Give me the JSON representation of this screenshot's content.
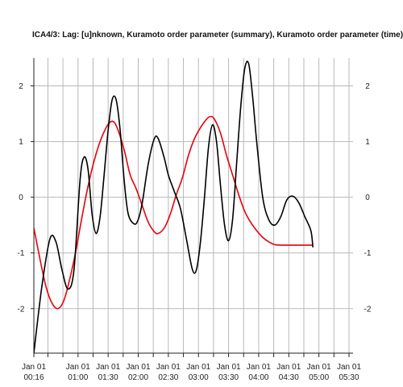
{
  "chart_data": {
    "type": "line",
    "title": "ICA4/3:  Lag: [u]nknown, Kuramoto order parameter (summary), Kuramoto order parameter (time)",
    "xlabel": "",
    "ylabel": "",
    "x_range": [
      "Jan 01 00:16",
      "Jan 01 05:34"
    ],
    "ylim": [
      -2.8,
      2.5
    ],
    "grid": true,
    "y_ticks": [
      -2,
      -1,
      0,
      1,
      2
    ],
    "y_tick_labels": [
      "-2",
      "-1",
      "0",
      "1",
      "2"
    ],
    "x_tick_labels": [
      {
        "line1": "Jan 01",
        "line2": "00:16",
        "minutes": 16
      },
      {
        "line1": "Jan 01",
        "line2": "01:00",
        "minutes": 60
      },
      {
        "line1": "Jan 01",
        "line2": "01:30",
        "minutes": 90
      },
      {
        "line1": "Jan 01",
        "line2": "02:00",
        "minutes": 120
      },
      {
        "line1": "Jan 01",
        "line2": "02:30",
        "minutes": 150
      },
      {
        "line1": "Jan 01",
        "line2": "03:00",
        "minutes": 180
      },
      {
        "line1": "Jan 01",
        "line2": "03:30",
        "minutes": 210
      },
      {
        "line1": "Jan 01",
        "line2": "04:00",
        "minutes": 240
      },
      {
        "line1": "Jan 01",
        "line2": "04:30",
        "minutes": 270
      },
      {
        "line1": "Jan 01",
        "line2": "05:00",
        "minutes": 300
      },
      {
        "line1": "Jan 01",
        "line2": "05:30",
        "minutes": 330
      }
    ],
    "x_minor_gridlines_minutes": [
      30,
      45,
      75,
      105,
      135,
      165,
      195,
      225,
      255,
      285,
      315
    ],
    "series": [
      {
        "color": "#000000",
        "points": [
          [
            16,
            -2.8
          ],
          [
            24,
            -1.6
          ],
          [
            32,
            -0.75
          ],
          [
            38,
            -0.8
          ],
          [
            44,
            -1.3
          ],
          [
            50,
            -1.65
          ],
          [
            56,
            -1.3
          ],
          [
            62,
            0.3
          ],
          [
            66,
            0.72
          ],
          [
            70,
            0.5
          ],
          [
            74,
            -0.3
          ],
          [
            78,
            -0.65
          ],
          [
            82,
            -0.35
          ],
          [
            86,
            0.4
          ],
          [
            90,
            1.2
          ],
          [
            94,
            1.75
          ],
          [
            98,
            1.75
          ],
          [
            102,
            1.2
          ],
          [
            106,
            0.3
          ],
          [
            110,
            -0.3
          ],
          [
            116,
            -0.48
          ],
          [
            120,
            -0.4
          ],
          [
            124,
            -0.1
          ],
          [
            130,
            0.6
          ],
          [
            136,
            1.05
          ],
          [
            140,
            1.05
          ],
          [
            146,
            0.7
          ],
          [
            150,
            0.4
          ],
          [
            156,
            0.1
          ],
          [
            162,
            -0.2
          ],
          [
            168,
            -0.75
          ],
          [
            174,
            -1.3
          ],
          [
            178,
            -1.3
          ],
          [
            182,
            -0.8
          ],
          [
            186,
            0.0
          ],
          [
            190,
            0.9
          ],
          [
            194,
            1.3
          ],
          [
            198,
            1.0
          ],
          [
            202,
            0.2
          ],
          [
            206,
            -0.5
          ],
          [
            210,
            -0.78
          ],
          [
            214,
            -0.4
          ],
          [
            218,
            0.6
          ],
          [
            222,
            1.6
          ],
          [
            226,
            2.3
          ],
          [
            230,
            2.4
          ],
          [
            234,
            1.8
          ],
          [
            238,
            1.0
          ],
          [
            244,
            0.0
          ],
          [
            250,
            -0.4
          ],
          [
            256,
            -0.5
          ],
          [
            262,
            -0.35
          ],
          [
            268,
            -0.05
          ],
          [
            274,
            0.02
          ],
          [
            280,
            -0.1
          ],
          [
            286,
            -0.35
          ],
          [
            292,
            -0.6
          ],
          [
            294,
            -0.9
          ]
        ]
      },
      {
        "color": "#e8000b",
        "points": [
          [
            16,
            -0.55
          ],
          [
            22,
            -1.1
          ],
          [
            28,
            -1.6
          ],
          [
            34,
            -1.9
          ],
          [
            40,
            -2.0
          ],
          [
            46,
            -1.85
          ],
          [
            52,
            -1.45
          ],
          [
            58,
            -0.95
          ],
          [
            64,
            -0.35
          ],
          [
            70,
            0.2
          ],
          [
            76,
            0.65
          ],
          [
            82,
            1.0
          ],
          [
            88,
            1.25
          ],
          [
            92,
            1.35
          ],
          [
            96,
            1.35
          ],
          [
            100,
            1.2
          ],
          [
            106,
            0.85
          ],
          [
            112,
            0.4
          ],
          [
            118,
            0.15
          ],
          [
            124,
            -0.15
          ],
          [
            130,
            -0.45
          ],
          [
            136,
            -0.62
          ],
          [
            140,
            -0.65
          ],
          [
            146,
            -0.55
          ],
          [
            152,
            -0.3
          ],
          [
            158,
            0.05
          ],
          [
            164,
            0.35
          ],
          [
            170,
            0.75
          ],
          [
            176,
            1.05
          ],
          [
            182,
            1.25
          ],
          [
            188,
            1.4
          ],
          [
            192,
            1.45
          ],
          [
            196,
            1.4
          ],
          [
            202,
            1.15
          ],
          [
            208,
            0.75
          ],
          [
            214,
            0.4
          ],
          [
            220,
            0.05
          ],
          [
            226,
            -0.25
          ],
          [
            232,
            -0.45
          ],
          [
            238,
            -0.6
          ],
          [
            244,
            -0.72
          ],
          [
            250,
            -0.8
          ],
          [
            256,
            -0.85
          ],
          [
            262,
            -0.86
          ],
          [
            268,
            -0.86
          ],
          [
            294,
            -0.86
          ]
        ]
      }
    ]
  }
}
